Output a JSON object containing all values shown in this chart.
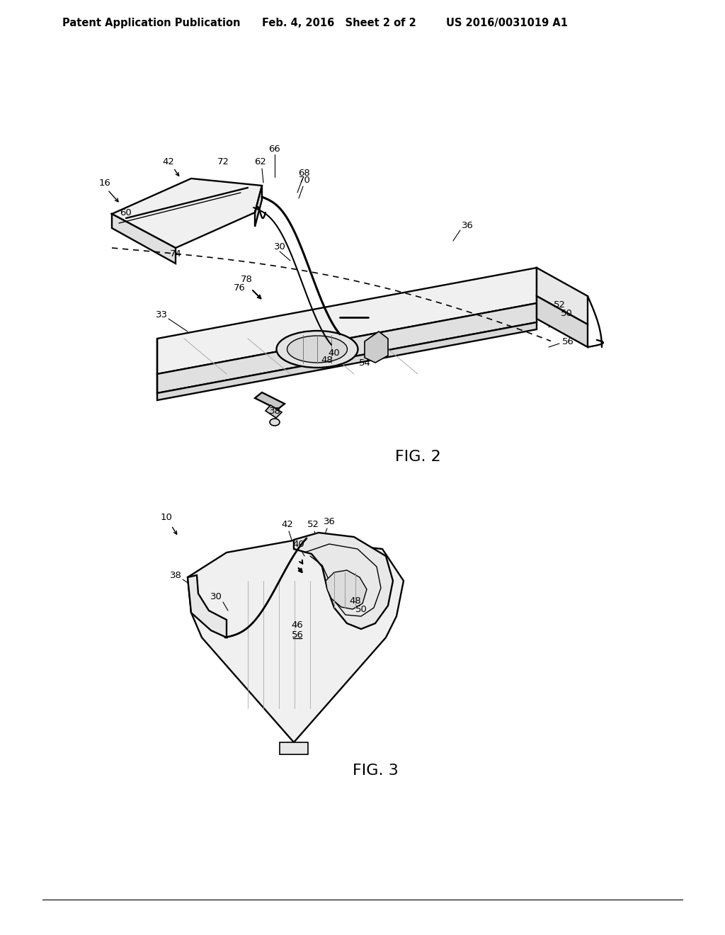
{
  "background_color": "#ffffff",
  "header_left": "Patent Application Publication",
  "header_mid": "Feb. 4, 2016   Sheet 2 of 2",
  "header_right": "US 2016/0031019 A1",
  "fig2_label": "FIG. 2",
  "fig3_label": "FIG. 3",
  "lc": "#000000",
  "font_size_header": 10.5,
  "font_size_ref": 9.5,
  "font_size_fig": 15
}
